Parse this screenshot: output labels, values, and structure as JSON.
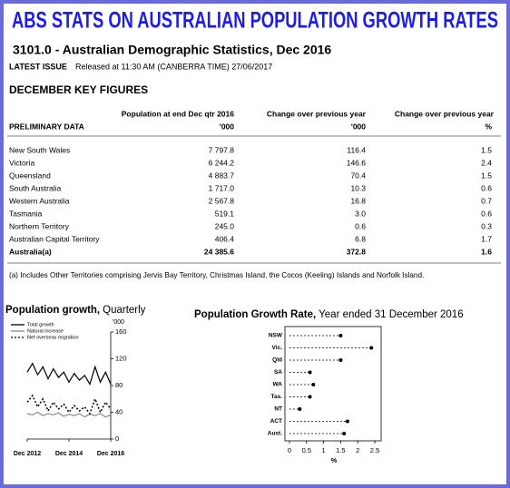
{
  "header": {
    "title": "ABS STATS ON AUSTRALIAN POPULATION GROWTH RATES",
    "subtitle": "3101.0 - Australian Demographic Statistics, Dec 2016",
    "issue_label": "LATEST ISSUE",
    "issue_text": "Released at 11:30 AM (CANBERRA TIME) 27/06/2017"
  },
  "section_title": "DECEMBER KEY FIGURES",
  "table": {
    "columns": [
      {
        "title": "PRELIMINARY DATA"
      },
      {
        "title": "Population at end Dec qtr 2016",
        "unit": "'000"
      },
      {
        "title": "Change over previous year",
        "unit": "'000"
      },
      {
        "title": "Change over previous year",
        "unit": "%"
      }
    ],
    "rows": [
      [
        "New South Wales",
        "7 797.8",
        "116.4",
        "1.5"
      ],
      [
        "Victoria",
        "6 244.2",
        "146.6",
        "2.4"
      ],
      [
        "Queensland",
        "4 883.7",
        "70.4",
        "1.5"
      ],
      [
        "South Australia",
        "1 717.0",
        "10.3",
        "0.6"
      ],
      [
        "Western Australia",
        "2 567.8",
        "16.8",
        "0.7"
      ],
      [
        "Tasmania",
        "519.1",
        "3.0",
        "0.6"
      ],
      [
        "Northern Territory",
        "245.0",
        "0.6",
        "0.3"
      ],
      [
        "Australian Capital Territory",
        "406.4",
        "6.8",
        "1.7"
      ],
      [
        "Australia(a)",
        "24 385.6",
        "372.8",
        "1.6"
      ]
    ]
  },
  "footnote": "(a) Includes Other Territories comprising Jervis Bay Territory, Christmas Island, the Cocos (Keeling) Islands and Norfolk Island.",
  "chart_data": [
    {
      "type": "line",
      "title": "Population growth,",
      "subtitle": "Quarterly",
      "y_unit": "'000",
      "categories": [
        "Dec 2012",
        null,
        null,
        null,
        null,
        null,
        null,
        null,
        "Dec 2014",
        null,
        null,
        null,
        null,
        null,
        null,
        null,
        "Dec 2016"
      ],
      "series": [
        {
          "name": "Total growth",
          "color": "#000000",
          "style": "solid",
          "values": [
            100,
            113,
            96,
            108,
            90,
            105,
            92,
            100,
            85,
            98,
            88,
            95,
            82,
            108,
            85,
            100,
            82
          ]
        },
        {
          "name": "Natural increase",
          "color": "#8a8a8a",
          "style": "solid",
          "values": [
            38,
            36,
            40,
            35,
            38,
            36,
            39,
            34,
            37,
            35,
            38,
            33,
            37,
            35,
            38,
            33,
            36
          ]
        },
        {
          "name": "Net overseas migration",
          "color": "#000000",
          "style": "dotted",
          "values": [
            55,
            65,
            48,
            60,
            42,
            55,
            45,
            52,
            40,
            50,
            42,
            48,
            38,
            60,
            40,
            55,
            45
          ]
        }
      ],
      "ylim": [
        0,
        160
      ],
      "yticks": [
        0,
        40,
        80,
        120,
        160
      ]
    },
    {
      "type": "dot",
      "title": "Population Growth Rate,",
      "subtitle": "Year ended 31 December 2016",
      "x_label": "%",
      "categories": [
        "NSW",
        "Vic.",
        "Qld",
        "SA",
        "WA",
        "Tas.",
        "NT",
        "ACT",
        "Aust."
      ],
      "values": [
        1.5,
        2.4,
        1.5,
        0.6,
        0.7,
        0.6,
        0.3,
        1.7,
        1.6
      ],
      "color": "#000000",
      "xlim": [
        0,
        2.5
      ],
      "xticks": [
        0,
        0.5,
        1,
        1.5,
        2,
        2.5
      ]
    }
  ]
}
